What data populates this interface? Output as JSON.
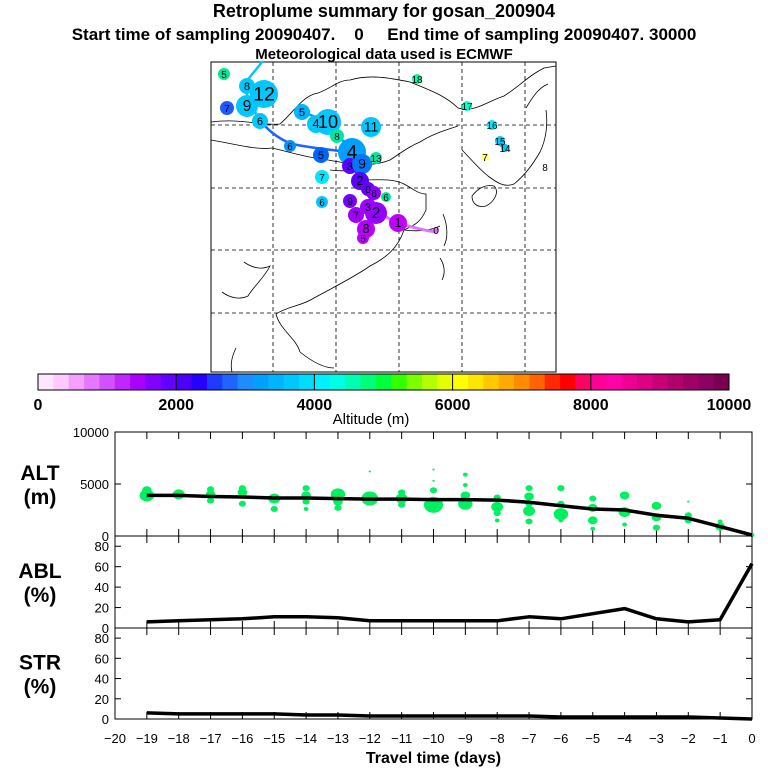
{
  "header": {
    "title": "Retroplume summary for gosan_200904",
    "line2": "Start time of sampling 20090407.    0     End time of sampling 20090407. 30000",
    "line3": "Meteorological data used is ECMWF"
  },
  "map": {
    "labels": [
      {
        "t": "5",
        "c": "#00e890"
      },
      {
        "t": "8",
        "c": "#00c8ff"
      },
      {
        "t": "12",
        "c": "#00c8ff"
      },
      {
        "t": "9",
        "c": "#00c8ff"
      },
      {
        "t": "7",
        "c": "#1e5aff"
      },
      {
        "t": "6",
        "c": "#00c8ff"
      },
      {
        "t": "5",
        "c": "#00b4ff"
      },
      {
        "t": "4",
        "c": "#00c8ff"
      },
      {
        "t": "10",
        "c": "#00c8ff"
      },
      {
        "t": "8",
        "c": "#00e6a0"
      },
      {
        "t": "11",
        "c": "#00c8ff"
      },
      {
        "t": "6",
        "c": "#0096ff"
      },
      {
        "t": "5",
        "c": "#0064ff"
      },
      {
        "t": "4",
        "c": "#00a0ff"
      },
      {
        "t": "3",
        "c": "#5a00ff"
      },
      {
        "t": "9",
        "c": "#0078ff"
      },
      {
        "t": "13",
        "c": "#00e6a0"
      },
      {
        "t": "7",
        "c": "#00e6ff"
      },
      {
        "t": "6",
        "c": "#00c8ff"
      },
      {
        "t": "18",
        "c": "#00ff96"
      },
      {
        "t": "17",
        "c": "#00ffd0"
      },
      {
        "t": "16",
        "c": "#00e6ff"
      },
      {
        "t": "15",
        "c": "#00c8ff"
      },
      {
        "t": "14",
        "c": "#00c8ff"
      },
      {
        "t": "7",
        "c": "#ffff80"
      },
      {
        "t": "8",
        "c": "#ffffff"
      },
      {
        "t": "2",
        "c": "#5a00ff"
      },
      {
        "t": "0",
        "c": "#6400ff"
      },
      {
        "t": "6",
        "c": "#00e6a0"
      },
      {
        "t": "6",
        "c": "#8c00ff"
      },
      {
        "t": "9",
        "c": "#7800ff"
      },
      {
        "t": "7",
        "c": "#a000ff"
      },
      {
        "t": "2",
        "c": "#9600ff"
      },
      {
        "t": "3",
        "c": "#a000ff"
      },
      {
        "t": "1",
        "c": "#c000ff"
      },
      {
        "t": "8",
        "c": "#b400ff"
      },
      {
        "t": "5",
        "c": "#c000ff"
      },
      {
        "t": "0",
        "c": "#dc78ff"
      }
    ]
  },
  "colorbar": {
    "colors": [
      "#ffe6ff",
      "#ffc8ff",
      "#f5a0ff",
      "#e678ff",
      "#d250ff",
      "#be28ff",
      "#aa00ff",
      "#8200ff",
      "#6400ff",
      "#4b00ff",
      "#2800ff",
      "#1e3cff",
      "#1e64ff",
      "#1e8cff",
      "#00a0ff",
      "#00b4ff",
      "#00c8ff",
      "#00dcff",
      "#00f0ff",
      "#00ffe6",
      "#00ffb4",
      "#00ff78",
      "#00ff3c",
      "#32ff00",
      "#78ff00",
      "#b4ff00",
      "#e6ff00",
      "#ffff00",
      "#ffe600",
      "#ffc800",
      "#ffaa00",
      "#ff8c00",
      "#ff6400",
      "#ff2800",
      "#ff0000",
      "#ff0064",
      "#ff0096",
      "#ff00aa",
      "#ee0096",
      "#dc0082",
      "#c80078",
      "#b4006e",
      "#a00064",
      "#8c0064",
      "#780050"
    ],
    "tick_labels": [
      "0",
      "2000",
      "4000",
      "6000",
      "8000",
      "10000"
    ],
    "axis_label": "Altitude (m)"
  },
  "chart_data": [
    {
      "type": "line",
      "panel": "ALT",
      "ylabel_line1": "ALT",
      "ylabel_line2": "(m)",
      "ylim": [
        0,
        10000
      ],
      "yticks": [
        "0",
        "5000",
        "10000"
      ],
      "x": [
        -19,
        -18,
        -17,
        -16,
        -15,
        -14,
        -13,
        -12,
        -11,
        -10,
        -9,
        -8,
        -7,
        -6,
        -5,
        -4,
        -3,
        -2,
        -1,
        0
      ],
      "values": [
        3900,
        3900,
        3800,
        3750,
        3650,
        3650,
        3600,
        3550,
        3550,
        3500,
        3500,
        3450,
        3250,
        2900,
        2600,
        2500,
        2000,
        1700,
        900,
        100
      ],
      "points": [
        [
          -19,
          3900,
          6
        ],
        [
          -19,
          4400,
          4
        ],
        [
          -19,
          3600,
          3
        ],
        [
          -18,
          4000,
          5
        ],
        [
          -18,
          4200,
          3
        ],
        [
          -17,
          4000,
          4
        ],
        [
          -17,
          4500,
          3
        ],
        [
          -17,
          3400,
          3
        ],
        [
          -16,
          4200,
          4
        ],
        [
          -16,
          3100,
          3
        ],
        [
          -16,
          4600,
          3
        ],
        [
          -15,
          3600,
          5
        ],
        [
          -15,
          2600,
          3
        ],
        [
          -14,
          3900,
          4
        ],
        [
          -14,
          3300,
          3
        ],
        [
          -14,
          4600,
          3
        ],
        [
          -14,
          2600,
          2
        ],
        [
          -13,
          4000,
          6
        ],
        [
          -13,
          3300,
          4
        ],
        [
          -13,
          2700,
          3
        ],
        [
          -12,
          3600,
          7
        ],
        [
          -12,
          6200,
          1
        ],
        [
          -11,
          3600,
          5
        ],
        [
          -11,
          4200,
          3
        ],
        [
          -11,
          3000,
          3
        ],
        [
          -10,
          3000,
          8
        ],
        [
          -10,
          4400,
          3
        ],
        [
          -10,
          6400,
          1
        ],
        [
          -10,
          5300,
          1
        ],
        [
          -9,
          3100,
          6
        ],
        [
          -9,
          3900,
          4
        ],
        [
          -9,
          5900,
          2
        ],
        [
          -9,
          4900,
          2
        ],
        [
          -8,
          2800,
          5
        ],
        [
          -8,
          2200,
          3
        ],
        [
          -8,
          3700,
          3
        ],
        [
          -8,
          1500,
          2
        ],
        [
          -7,
          2400,
          5
        ],
        [
          -7,
          3800,
          4
        ],
        [
          -7,
          1400,
          3
        ],
        [
          -7,
          4600,
          3
        ],
        [
          -7,
          3100,
          3
        ],
        [
          -6,
          2100,
          6
        ],
        [
          -6,
          4600,
          3
        ],
        [
          -6,
          3100,
          3
        ],
        [
          -6,
          1500,
          2
        ],
        [
          -5,
          1500,
          4
        ],
        [
          -5,
          2700,
          4
        ],
        [
          -5,
          3600,
          3
        ],
        [
          -5,
          700,
          2
        ],
        [
          -4,
          2300,
          5
        ],
        [
          -4,
          3900,
          4
        ],
        [
          -4,
          1100,
          2
        ],
        [
          -3,
          1800,
          4
        ],
        [
          -3,
          2900,
          4
        ],
        [
          -3,
          800,
          3
        ],
        [
          -2,
          1500,
          3
        ],
        [
          -2,
          2000,
          3
        ],
        [
          -2,
          3300,
          1
        ],
        [
          -1,
          900,
          4
        ],
        [
          -1,
          1400,
          2
        ],
        [
          0,
          100,
          2
        ]
      ]
    },
    {
      "type": "line",
      "panel": "ABL",
      "ylabel_line1": "ABL",
      "ylabel_line2": "(%)",
      "ylim": [
        0,
        90
      ],
      "yticks": [
        "0",
        "20",
        "40",
        "60",
        "80"
      ],
      "x": [
        -19,
        -18,
        -17,
        -16,
        -15,
        -14,
        -13,
        -12,
        -11,
        -10,
        -9,
        -8,
        -7,
        -6,
        -5,
        -4,
        -3,
        -2,
        -1,
        0
      ],
      "values": [
        6,
        7,
        8,
        9,
        11,
        11,
        10,
        7,
        7,
        7,
        7,
        7,
        11,
        9,
        14,
        19,
        9,
        6,
        8,
        63
      ]
    },
    {
      "type": "line",
      "panel": "STR",
      "ylabel_line1": "STR",
      "ylabel_line2": "(%)",
      "ylim": [
        0,
        90
      ],
      "yticks": [
        "0",
        "20",
        "40",
        "60",
        "80"
      ],
      "x": [
        -19,
        -18,
        -17,
        -16,
        -15,
        -14,
        -13,
        -12,
        -11,
        -10,
        -9,
        -8,
        -7,
        -6,
        -5,
        -4,
        -3,
        -2,
        -1,
        0
      ],
      "values": [
        6,
        5,
        5,
        5,
        5,
        4,
        4,
        3,
        3,
        3,
        3,
        3,
        3,
        2,
        2,
        2,
        2,
        2,
        1,
        0
      ],
      "xlabel": "Travel time (days)",
      "xticks": [
        "−20",
        "−19",
        "−18",
        "−17",
        "−16",
        "−15",
        "−14",
        "−13",
        "−12",
        "−11",
        "−10",
        "−9",
        "−8",
        "−7",
        "−6",
        "−5",
        "−4",
        "−3",
        "−2",
        "−1",
        "0"
      ]
    }
  ]
}
